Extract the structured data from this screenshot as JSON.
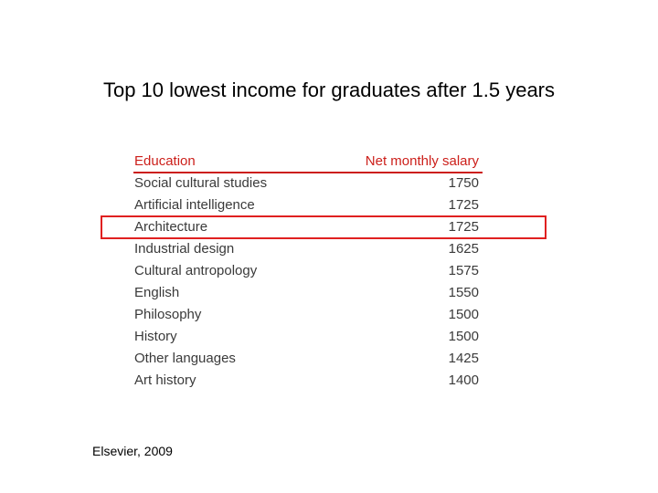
{
  "slide": {
    "title": "Top 10 lowest income for graduates after 1.5 years",
    "source": "Elsevier, 2009"
  },
  "table": {
    "headers": {
      "education": "Education",
      "salary": "Net monthly salary"
    },
    "rows": [
      {
        "education": "Social cultural studies",
        "salary": "1750"
      },
      {
        "education": "Artificial intelligence",
        "salary": "1725"
      },
      {
        "education": "Architecture",
        "salary": "1725"
      },
      {
        "education": "Industrial design",
        "salary": "1625"
      },
      {
        "education": "Cultural antropology",
        "salary": "1575"
      },
      {
        "education": "English",
        "salary": "1550"
      },
      {
        "education": "Philosophy",
        "salary": "1500"
      },
      {
        "education": "History",
        "salary": "1500"
      },
      {
        "education": "Other languages",
        "salary": "1425"
      },
      {
        "education": "Art history",
        "salary": "1400"
      }
    ],
    "highlighted_row": "Architecture"
  },
  "colors": {
    "header_text": "#cc1f1a",
    "highlight_border": "#e02020",
    "body_text": "#3a3a3a"
  }
}
